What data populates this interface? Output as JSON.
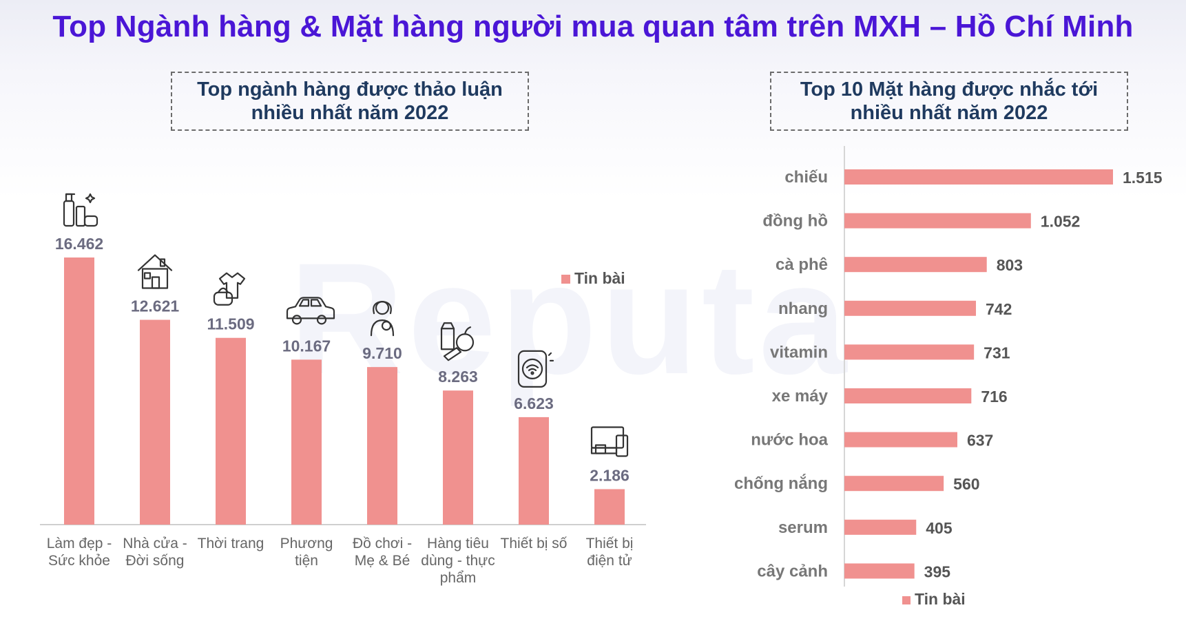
{
  "header": {
    "title": "Top Ngành hàng & Mặt hàng người mua quan tâm trên MXH – Hồ Chí Minh"
  },
  "watermark": "Reputa",
  "left_panel": {
    "title_line1": "Top ngành hàng được thảo luận",
    "title_line2": "nhiều nhất năm 2022"
  },
  "right_panel": {
    "title_line1": "Top 10 Mặt hàng được nhắc tới",
    "title_line2": "nhiều nhất năm 2022"
  },
  "colors": {
    "bar": "#f0918f",
    "title": "#4a16d6",
    "panel_title": "#1f3a5f"
  },
  "chart_data": [
    {
      "type": "bar",
      "orientation": "vertical",
      "categories": [
        [
          "Làm đẹp -",
          "Sức khỏe"
        ],
        [
          "Nhà cửa -",
          "Đời sống"
        ],
        [
          "Thời trang"
        ],
        [
          "Phương",
          "tiện"
        ],
        [
          "Đồ chơi -",
          "Mẹ & Bé"
        ],
        [
          "Hàng tiêu",
          "dùng - thực",
          "phẩm"
        ],
        [
          "Thiết bị số"
        ],
        [
          "Thiết bị",
          "điện tử"
        ]
      ],
      "icons": [
        "cosmetics-icon",
        "house-icon",
        "clothing-icon",
        "car-icon",
        "mother-baby-icon",
        "groceries-icon",
        "smart-device-icon",
        "electronics-icon"
      ],
      "series": [
        {
          "name": "Tin bài",
          "values": [
            16462,
            12621,
            11509,
            10167,
            9710,
            8263,
            6623,
            2186
          ]
        }
      ],
      "value_labels": [
        "16.462",
        "12.621",
        "11.509",
        "10.167",
        "9.710",
        "8.263",
        "6.623",
        "2.186"
      ],
      "legend": {
        "label": "Tin bài",
        "position": "top-right"
      }
    },
    {
      "type": "bar",
      "orientation": "horizontal",
      "categories": [
        "chiếu",
        "đồng hồ",
        "cà phê",
        "nhang",
        "vitamin",
        "xe máy",
        "nước hoa",
        "chống nắng",
        "serum",
        "cây cảnh"
      ],
      "series": [
        {
          "name": "Tin bài",
          "values": [
            1515,
            1052,
            803,
            742,
            731,
            716,
            637,
            560,
            405,
            395
          ]
        }
      ],
      "value_labels": [
        "1.515",
        "1.052",
        "803",
        "742",
        "731",
        "716",
        "637",
        "560",
        "405",
        "395"
      ],
      "legend": {
        "label": "Tin bài",
        "position": "bottom"
      }
    }
  ]
}
